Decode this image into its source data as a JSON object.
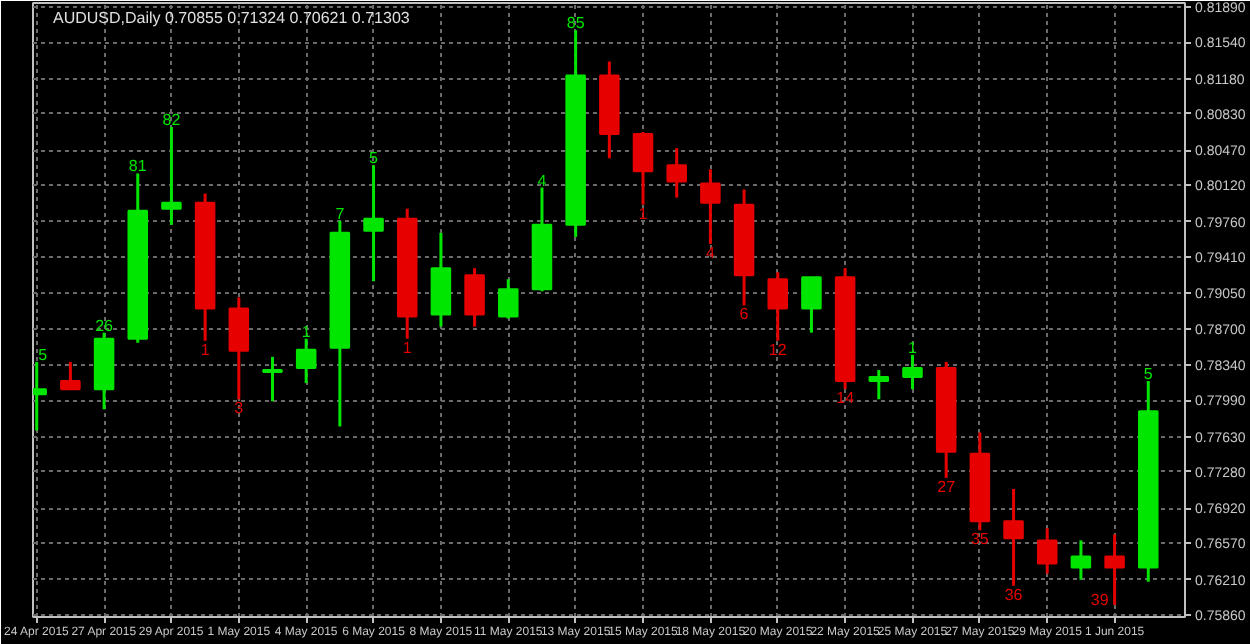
{
  "chart_data": {
    "type": "candlestick",
    "title": "AUDUSD,Daily  0.70855 0.71324 0.70621 0.71303",
    "categories": [
      "24 Apr 2015",
      null,
      "27 Apr 2015",
      null,
      "29 Apr 2015",
      null,
      "1 May 2015",
      null,
      "4 May 2015",
      null,
      "6 May 2015",
      null,
      "8 May 2015",
      null,
      "11 May 2015",
      null,
      "13 May 2015",
      null,
      "15 May 2015",
      null,
      "18 May 2015",
      null,
      "20 May 2015",
      null,
      "22 May 2015",
      null,
      "25 May 2015",
      null,
      "27 May 2015",
      null,
      "29 May 2015",
      null,
      "1 Jun 2015",
      null
    ],
    "ohlc": [
      [
        0.7805,
        0.7837,
        0.7769,
        0.781
      ],
      [
        0.7818,
        0.7837,
        0.781,
        0.781
      ],
      [
        0.781,
        0.7866,
        0.779,
        0.786
      ],
      [
        0.786,
        0.8024,
        0.7856,
        0.7987
      ],
      [
        0.7989,
        0.807,
        0.7973,
        0.7995
      ],
      [
        0.7995,
        0.8004,
        0.7858,
        0.789
      ],
      [
        0.789,
        0.7901,
        0.78,
        0.7848
      ],
      [
        0.7827,
        0.7842,
        0.7798,
        0.7829
      ],
      [
        0.7831,
        0.786,
        0.7816,
        0.7849
      ],
      [
        0.7851,
        0.7977,
        0.7773,
        0.7965
      ],
      [
        0.7967,
        0.8032,
        0.7917,
        0.7979
      ],
      [
        0.7979,
        0.7989,
        0.786,
        0.7882
      ],
      [
        0.7884,
        0.7965,
        0.7872,
        0.793
      ],
      [
        0.7923,
        0.793,
        0.7872,
        0.7884
      ],
      [
        0.7882,
        0.7919,
        0.788,
        0.7909
      ],
      [
        0.7909,
        0.801,
        0.7907,
        0.7973
      ],
      [
        0.7973,
        0.8166,
        0.7961,
        0.8121
      ],
      [
        0.8121,
        0.8135,
        0.8039,
        0.8063
      ],
      [
        0.8063,
        0.8065,
        0.7993,
        0.8026
      ],
      [
        0.8032,
        0.8049,
        0.8,
        0.8016
      ],
      [
        0.8014,
        0.8028,
        0.7954,
        0.7995
      ],
      [
        0.7993,
        0.8008,
        0.7893,
        0.7923
      ],
      [
        0.7919,
        0.7926,
        0.7858,
        0.789
      ],
      [
        0.789,
        0.7921,
        0.7866,
        0.7921
      ],
      [
        0.7921,
        0.793,
        0.781,
        0.7818
      ],
      [
        0.7818,
        0.7829,
        0.78,
        0.7822
      ],
      [
        0.7822,
        0.7844,
        0.781,
        0.7831
      ],
      [
        0.7831,
        0.7837,
        0.7722,
        0.7748
      ],
      [
        0.7746,
        0.7767,
        0.767,
        0.7679
      ],
      [
        0.7679,
        0.7711,
        0.7615,
        0.7662
      ],
      [
        0.766,
        0.7672,
        0.7627,
        0.7637
      ],
      [
        0.7633,
        0.766,
        0.7621,
        0.7644
      ],
      [
        0.7644,
        0.7666,
        0.7596,
        0.7633
      ],
      [
        0.7633,
        0.7818,
        0.7619,
        0.7788
      ]
    ],
    "colors": [
      "#00e600",
      "#e60000",
      "#00e600",
      "#00e600",
      "#00e600",
      "#e60000",
      "#e60000",
      "#00e600",
      "#00e600",
      "#00e600",
      "#00e600",
      "#e60000",
      "#00e600",
      "#e60000",
      "#00e600",
      "#00e600",
      "#00e600",
      "#e60000",
      "#e60000",
      "#e60000",
      "#e60000",
      "#e60000",
      "#e60000",
      "#00e600",
      "#e60000",
      "#00e600",
      "#00e600",
      "#e60000",
      "#e60000",
      "#e60000",
      "#e60000",
      "#00e600",
      "#e60000",
      "#00e600"
    ],
    "value_labels": [
      "5",
      null,
      "26",
      "81",
      "82",
      "1",
      "3",
      null,
      "1",
      "7",
      "5",
      "1",
      null,
      null,
      null,
      "4",
      "85",
      null,
      "1",
      null,
      "4",
      "6",
      "12",
      null,
      "14",
      null,
      "1",
      "27",
      "35",
      "36",
      null,
      null,
      "39",
      "5"
    ],
    "ylim": [
      0.7584,
      0.8193
    ],
    "yticks": [
      {
        "value": 0.8189,
        "label": "0.81890"
      },
      {
        "value": 0.8154,
        "label": "0.81540"
      },
      {
        "value": 0.8118,
        "label": "0.81180"
      },
      {
        "value": 0.8083,
        "label": "0.80830"
      },
      {
        "value": 0.8047,
        "label": "0.80470"
      },
      {
        "value": 0.8012,
        "label": "0.80120"
      },
      {
        "value": 0.7976,
        "label": "0.79760"
      },
      {
        "value": 0.7941,
        "label": "0.79410"
      },
      {
        "value": 0.7905,
        "label": "0.79050"
      },
      {
        "value": 0.787,
        "label": "0.78700"
      },
      {
        "value": 0.7834,
        "label": "0.78340"
      },
      {
        "value": 0.7799,
        "label": "0.77990"
      },
      {
        "value": 0.7763,
        "label": "0.77630"
      },
      {
        "value": 0.7728,
        "label": "0.77280"
      },
      {
        "value": 0.7692,
        "label": "0.76920"
      },
      {
        "value": 0.7657,
        "label": "0.76570"
      },
      {
        "value": 0.7621,
        "label": "0.76210"
      },
      {
        "value": 0.7586,
        "label": "0.75860"
      }
    ],
    "grid": true
  }
}
